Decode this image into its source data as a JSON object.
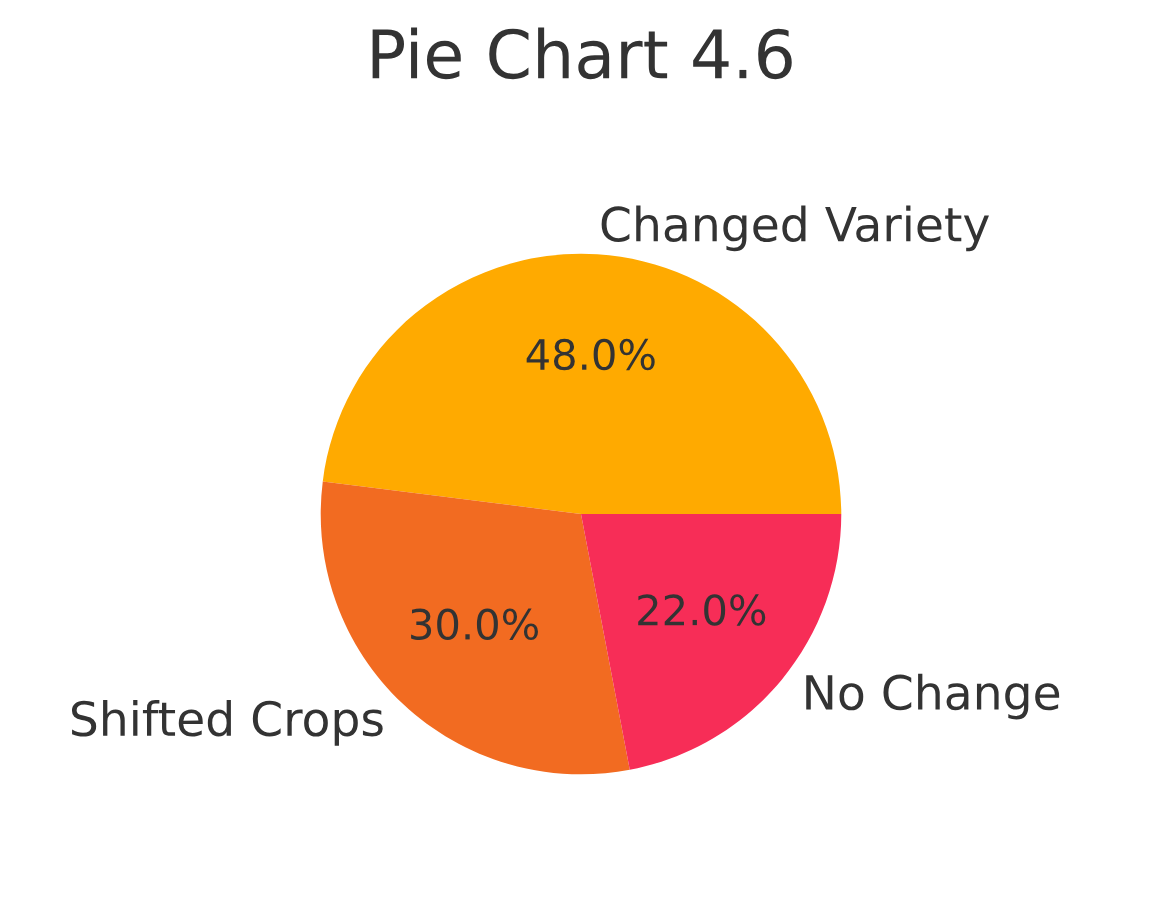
{
  "chart_data": {
    "type": "pie",
    "title": "Pie Chart 4.6",
    "categories": [
      "Changed Variety",
      "Shifted Crops",
      "No Change"
    ],
    "values": [
      48,
      30,
      22
    ],
    "colors": [
      "#ffaa00",
      "#f26b21",
      "#f72d57"
    ],
    "value_labels": [
      "48.0%",
      "30.0%",
      "22.0%"
    ]
  }
}
